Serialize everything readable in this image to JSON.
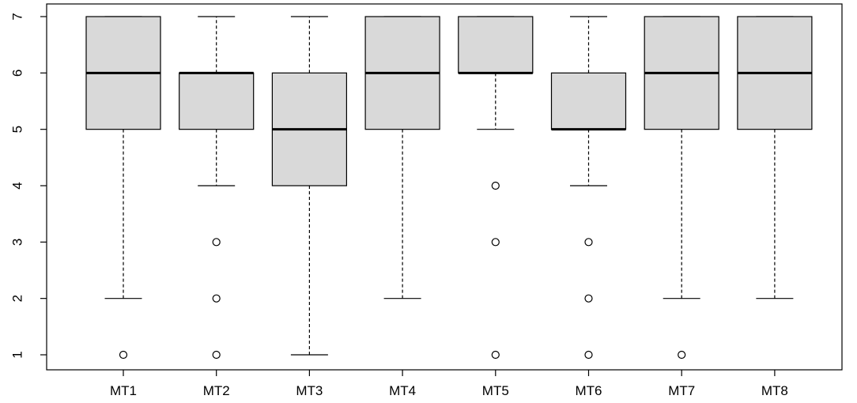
{
  "chart_data": {
    "type": "boxplot",
    "title": "",
    "xlabel": "",
    "ylabel": "",
    "ylim": [
      1,
      7
    ],
    "yticks": [
      1,
      2,
      3,
      4,
      5,
      6,
      7
    ],
    "grid": false,
    "colors": {
      "box_fill": "#d9d9d9",
      "stroke": "#000000"
    },
    "categories": [
      "MT1",
      "MT2",
      "MT3",
      "MT4",
      "MT5",
      "MT6",
      "MT7",
      "MT8"
    ],
    "boxes": [
      {
        "label": "MT1",
        "whisker_low": 2,
        "q1": 5,
        "median": 6,
        "q3": 7,
        "whisker_high": 7,
        "outliers": [
          1
        ]
      },
      {
        "label": "MT2",
        "whisker_low": 4,
        "q1": 5,
        "median": 6,
        "q3": 6,
        "whisker_high": 7,
        "outliers": [
          3,
          2,
          1
        ]
      },
      {
        "label": "MT3",
        "whisker_low": 1,
        "q1": 4,
        "median": 5,
        "q3": 6,
        "whisker_high": 7,
        "outliers": []
      },
      {
        "label": "MT4",
        "whisker_low": 2,
        "q1": 5,
        "median": 6,
        "q3": 7,
        "whisker_high": 7,
        "outliers": []
      },
      {
        "label": "MT5",
        "whisker_low": 5,
        "q1": 6,
        "median": 6,
        "q3": 7,
        "whisker_high": 7,
        "outliers": [
          4,
          3,
          1
        ]
      },
      {
        "label": "MT6",
        "whisker_low": 4,
        "q1": 5,
        "median": 5,
        "q3": 6,
        "whisker_high": 7,
        "outliers": [
          3,
          2,
          1
        ]
      },
      {
        "label": "MT7",
        "whisker_low": 2,
        "q1": 5,
        "median": 6,
        "q3": 7,
        "whisker_high": 7,
        "outliers": [
          1
        ]
      },
      {
        "label": "MT8",
        "whisker_low": 2,
        "q1": 5,
        "median": 6,
        "q3": 7,
        "whisker_high": 7,
        "outliers": []
      }
    ]
  }
}
